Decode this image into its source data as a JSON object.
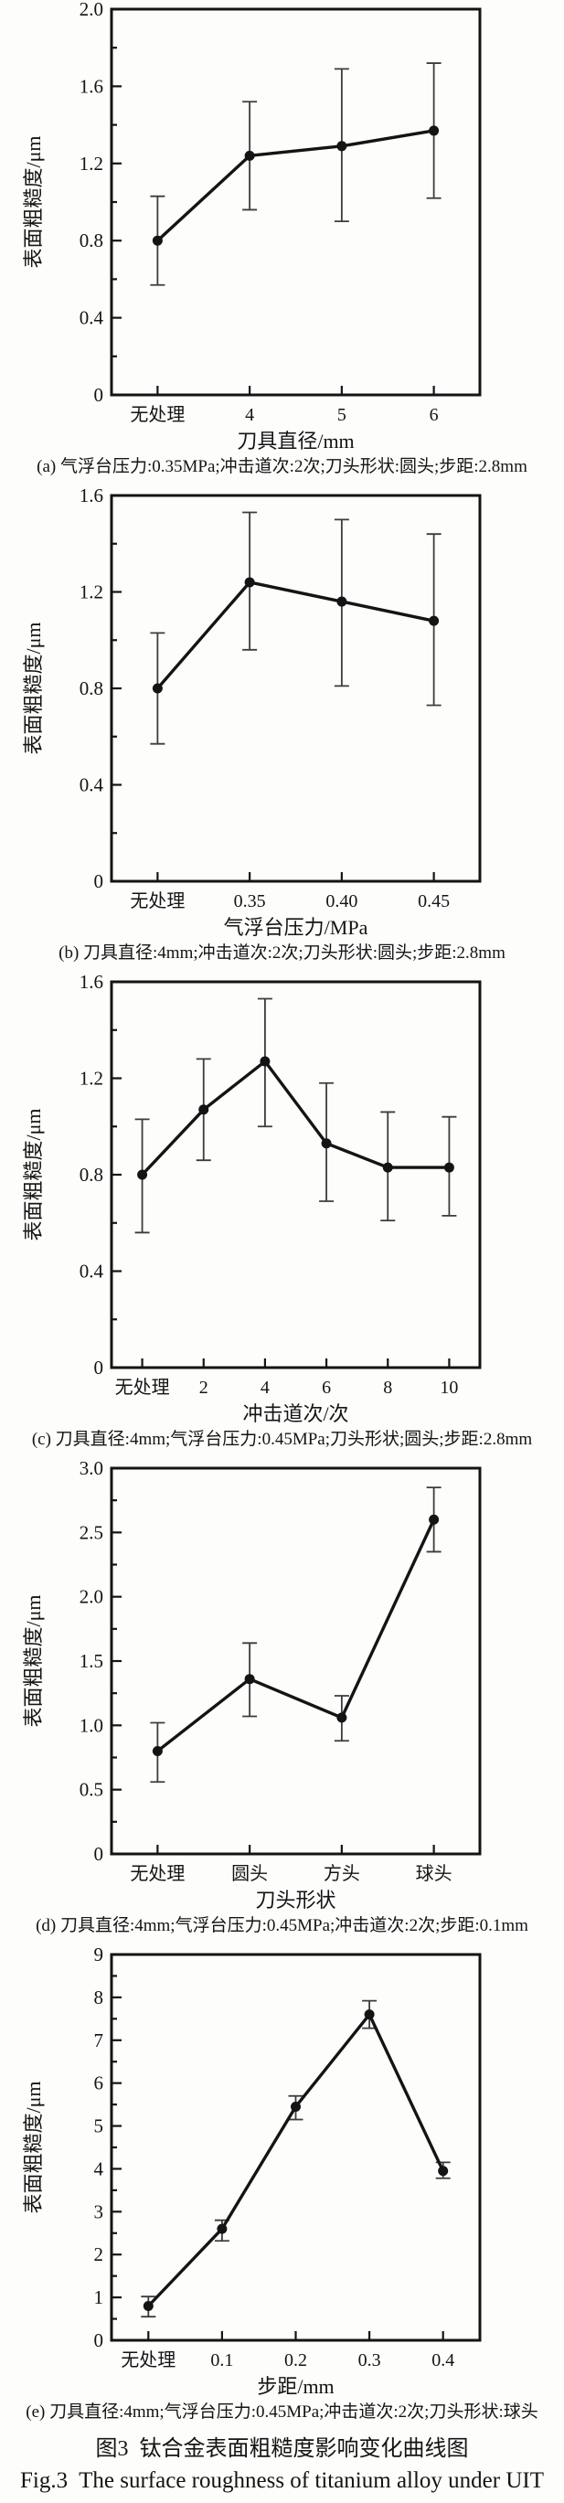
{
  "figure": {
    "title_cn": "图3  钛合金表面粗糙度影响变化曲线图",
    "title_en": "Fig.3  The surface roughness of titanium alloy under UIT"
  },
  "chart_data": [
    {
      "id": "a",
      "type": "line",
      "xlabel": "刀具直径/mm",
      "ylabel": "表面粗糙度/μm",
      "categories": [
        "无处理",
        "4",
        "5",
        "6"
      ],
      "values": [
        0.8,
        1.24,
        1.29,
        1.37
      ],
      "err_lo": [
        0.57,
        0.96,
        0.9,
        1.02
      ],
      "err_hi": [
        1.03,
        1.52,
        1.69,
        1.72
      ],
      "ylim": [
        0,
        2.0
      ],
      "ytick_step": 0.4,
      "yminor_step": 0.2,
      "ytick_labels": [
        "0",
        "0.4",
        "0.8",
        "1.2",
        "1.6",
        "2.0"
      ],
      "grid": false,
      "legend": "none",
      "marker": "filled-circle",
      "caption": "(a) 气浮台压力:0.35MPa;冲击道次:2次;刀头形状:圆头;步距:2.8mm"
    },
    {
      "id": "b",
      "type": "line",
      "xlabel": "气浮台压力/MPa",
      "ylabel": "表面粗糙度/μm",
      "categories": [
        "无处理",
        "0.35",
        "0.40",
        "0.45"
      ],
      "values": [
        0.8,
        1.24,
        1.16,
        1.08
      ],
      "err_lo": [
        0.57,
        0.96,
        0.81,
        0.73
      ],
      "err_hi": [
        1.03,
        1.53,
        1.5,
        1.44
      ],
      "ylim": [
        0,
        1.6
      ],
      "ytick_step": 0.4,
      "yminor_step": 0.2,
      "ytick_labels": [
        "0",
        "0.4",
        "0.8",
        "1.2",
        "1.6"
      ],
      "grid": false,
      "legend": "none",
      "marker": "filled-circle",
      "caption": "(b) 刀具直径:4mm;冲击道次:2次;刀头形状:圆头;步距:2.8mm"
    },
    {
      "id": "c",
      "type": "line",
      "xlabel": "冲击道次/次",
      "ylabel": "表面粗糙度/μm",
      "categories": [
        "无处理",
        "2",
        "4",
        "6",
        "8",
        "10"
      ],
      "values": [
        0.8,
        1.07,
        1.27,
        0.93,
        0.83,
        0.83
      ],
      "err_lo": [
        0.56,
        0.86,
        1.0,
        0.69,
        0.61,
        0.63
      ],
      "err_hi": [
        1.03,
        1.28,
        1.53,
        1.18,
        1.06,
        1.04
      ],
      "ylim": [
        0,
        1.6
      ],
      "ytick_step": 0.4,
      "yminor_step": 0.2,
      "ytick_labels": [
        "0",
        "0.4",
        "0.8",
        "1.2",
        "1.6"
      ],
      "grid": false,
      "legend": "none",
      "marker": "filled-circle",
      "caption": "(c) 刀具直径:4mm;气浮台压力:0.45MPa;刀头形状;圆头;步距:2.8mm"
    },
    {
      "id": "d",
      "type": "line",
      "xlabel": "刀头形状",
      "ylabel": "表面粗糙度/μm",
      "categories": [
        "无处理",
        "圆头",
        "方头",
        "球头"
      ],
      "values": [
        0.8,
        1.36,
        1.06,
        2.6
      ],
      "err_lo": [
        0.56,
        1.07,
        0.88,
        2.35
      ],
      "err_hi": [
        1.02,
        1.64,
        1.23,
        2.85
      ],
      "ylim": [
        0,
        3.0
      ],
      "ytick_step": 0.5,
      "yminor_step": 0.25,
      "ytick_labels": [
        "0",
        "0.5",
        "1.0",
        "1.5",
        "2.0",
        "2.5",
        "3.0"
      ],
      "grid": false,
      "legend": "none",
      "marker": "filled-circle",
      "caption": "(d) 刀具直径:4mm;气浮台压力:0.45MPa;冲击道次:2次;步距:0.1mm"
    },
    {
      "id": "e",
      "type": "line",
      "xlabel": "步距/mm",
      "ylabel": "表面粗糙度/μm",
      "categories": [
        "无处理",
        "0.1",
        "0.2",
        "0.3",
        "0.4"
      ],
      "values": [
        0.8,
        2.6,
        5.45,
        7.6,
        3.95
      ],
      "err_lo": [
        0.55,
        2.32,
        5.15,
        7.28,
        3.78
      ],
      "err_hi": [
        1.02,
        2.8,
        5.7,
        7.92,
        4.15
      ],
      "ylim": [
        0,
        9
      ],
      "ytick_step": 1,
      "yminor_step": 0.5,
      "ytick_labels": [
        "0",
        "1",
        "2",
        "3",
        "4",
        "5",
        "6",
        "7",
        "8",
        "9"
      ],
      "grid": false,
      "legend": "none",
      "marker": "filled-circle",
      "caption": "(e) 刀具直径:4mm;气浮台压力:0.45MPa;冲击道次:2次;刀头形状:球头"
    }
  ]
}
